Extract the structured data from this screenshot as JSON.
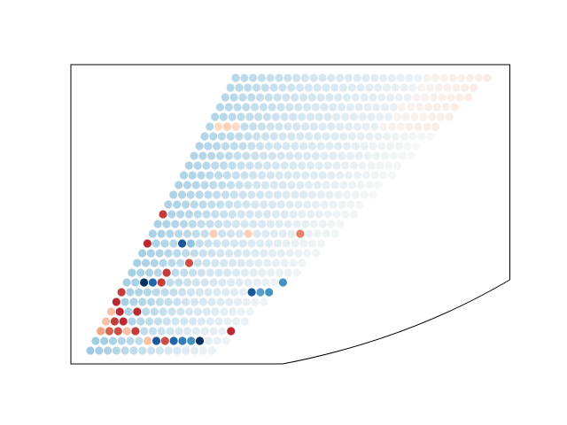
{
  "chart_data": {
    "type": "scatter",
    "title": "",
    "xlabel": "",
    "ylabel": "",
    "grid": false,
    "legend": "none",
    "colormap": "RdBu_r",
    "color_range": [
      -1,
      1
    ],
    "rows": 29,
    "cols": 40,
    "default_value": -0.05,
    "highlights": [
      {
        "col": 31,
        "row": 0,
        "v": 0.75
      },
      {
        "col": 1,
        "row": 5,
        "v": 0.2
      },
      {
        "col": 2,
        "row": 5,
        "v": 0.25
      },
      {
        "col": 3,
        "row": 5,
        "v": 0.2
      },
      {
        "col": 0,
        "row": 14,
        "v": 0.7
      },
      {
        "col": 7,
        "row": 16,
        "v": 0.25
      },
      {
        "col": 11,
        "row": 16,
        "v": 0.25
      },
      {
        "col": 17,
        "row": 16,
        "v": 0.5
      },
      {
        "col": 0,
        "row": 17,
        "v": 0.75
      },
      {
        "col": 4,
        "row": 17,
        "v": -0.85
      },
      {
        "col": 5,
        "row": 17,
        "v": -0.4
      },
      {
        "col": 6,
        "row": 19,
        "v": 0.65
      },
      {
        "col": 4,
        "row": 20,
        "v": 0.7
      },
      {
        "col": 2,
        "row": 21,
        "v": -1.0
      },
      {
        "col": 3,
        "row": 21,
        "v": -0.8
      },
      {
        "col": 4,
        "row": 21,
        "v": 0.7
      },
      {
        "col": 18,
        "row": 21,
        "v": -0.6
      },
      {
        "col": 19,
        "row": 21,
        "v": -0.8
      },
      {
        "col": 20,
        "row": 21,
        "v": -0.8
      },
      {
        "col": 0,
        "row": 22,
        "v": 0.7
      },
      {
        "col": 15,
        "row": 22,
        "v": -0.85
      },
      {
        "col": 16,
        "row": 22,
        "v": -0.55
      },
      {
        "col": 17,
        "row": 22,
        "v": -0.6
      },
      {
        "col": 0,
        "row": 23,
        "v": 0.75
      },
      {
        "col": 0,
        "row": 24,
        "v": 0.3
      },
      {
        "col": 1,
        "row": 24,
        "v": 0.75
      },
      {
        "col": 3,
        "row": 24,
        "v": 0.75
      },
      {
        "col": 0,
        "row": 25,
        "v": 0.3
      },
      {
        "col": 1,
        "row": 25,
        "v": 0.7
      },
      {
        "col": 2,
        "row": 25,
        "v": 0.75
      },
      {
        "col": 0,
        "row": 26,
        "v": 0.4
      },
      {
        "col": 1,
        "row": 26,
        "v": 0.6
      },
      {
        "col": 2,
        "row": 26,
        "v": 0.65
      },
      {
        "col": 3,
        "row": 26,
        "v": 0.3
      },
      {
        "col": 4,
        "row": 26,
        "v": 0.7
      },
      {
        "col": 15,
        "row": 26,
        "v": 0.75
      },
      {
        "col": 6,
        "row": 27,
        "v": 0.3
      },
      {
        "col": 7,
        "row": 27,
        "v": -0.85
      },
      {
        "col": 8,
        "row": 27,
        "v": 0.65
      },
      {
        "col": 9,
        "row": 27,
        "v": -0.8
      },
      {
        "col": 10,
        "row": 27,
        "v": -0.7
      },
      {
        "col": 11,
        "row": 27,
        "v": -0.6
      },
      {
        "col": 12,
        "row": 27,
        "v": -1.0
      }
    ]
  }
}
